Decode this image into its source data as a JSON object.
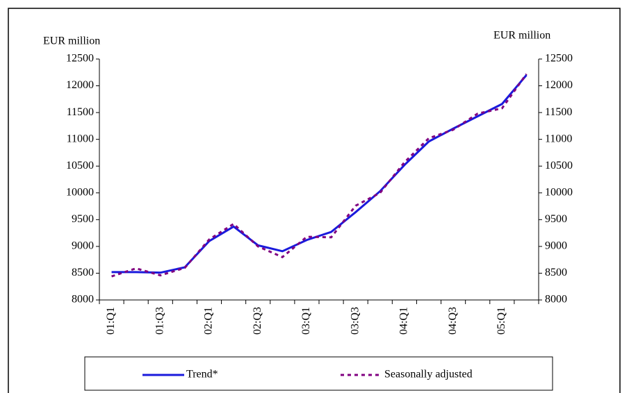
{
  "chart_data": {
    "type": "line",
    "y_label": "EUR million",
    "y2_label": "EUR million",
    "categories": [
      "01:Q1",
      null,
      "01:Q3",
      null,
      "02:Q1",
      null,
      "02:Q3",
      null,
      "03:Q1",
      null,
      "03:Q3",
      null,
      "04:Q1",
      null,
      "04:Q3",
      null,
      "05:Q1",
      null
    ],
    "series": [
      {
        "name": "Trend*",
        "color": "#1a1adc",
        "style": "solid",
        "values": [
          8520,
          8520,
          8510,
          8610,
          9100,
          9370,
          9020,
          8910,
          9120,
          9270,
          9640,
          10030,
          10520,
          10960,
          11200,
          11430,
          11660,
          12200
        ]
      },
      {
        "name": "Seasonally adjusted",
        "color": "#800080",
        "style": "dashed",
        "values": [
          8440,
          8590,
          8460,
          8600,
          9130,
          9420,
          9000,
          8800,
          9180,
          9170,
          9760,
          10000,
          10570,
          11020,
          11180,
          11480,
          11580,
          12220
        ]
      }
    ],
    "ylim": [
      8000,
      12500
    ],
    "yticks": [
      8000,
      8500,
      9000,
      9500,
      10000,
      10500,
      11000,
      11500,
      12000,
      12500
    ],
    "y2lim": [
      8000,
      12500
    ],
    "y2ticks": [
      8000,
      8500,
      9000,
      9500,
      10000,
      10500,
      11000,
      11500,
      12000,
      12500
    ],
    "grid": false
  }
}
